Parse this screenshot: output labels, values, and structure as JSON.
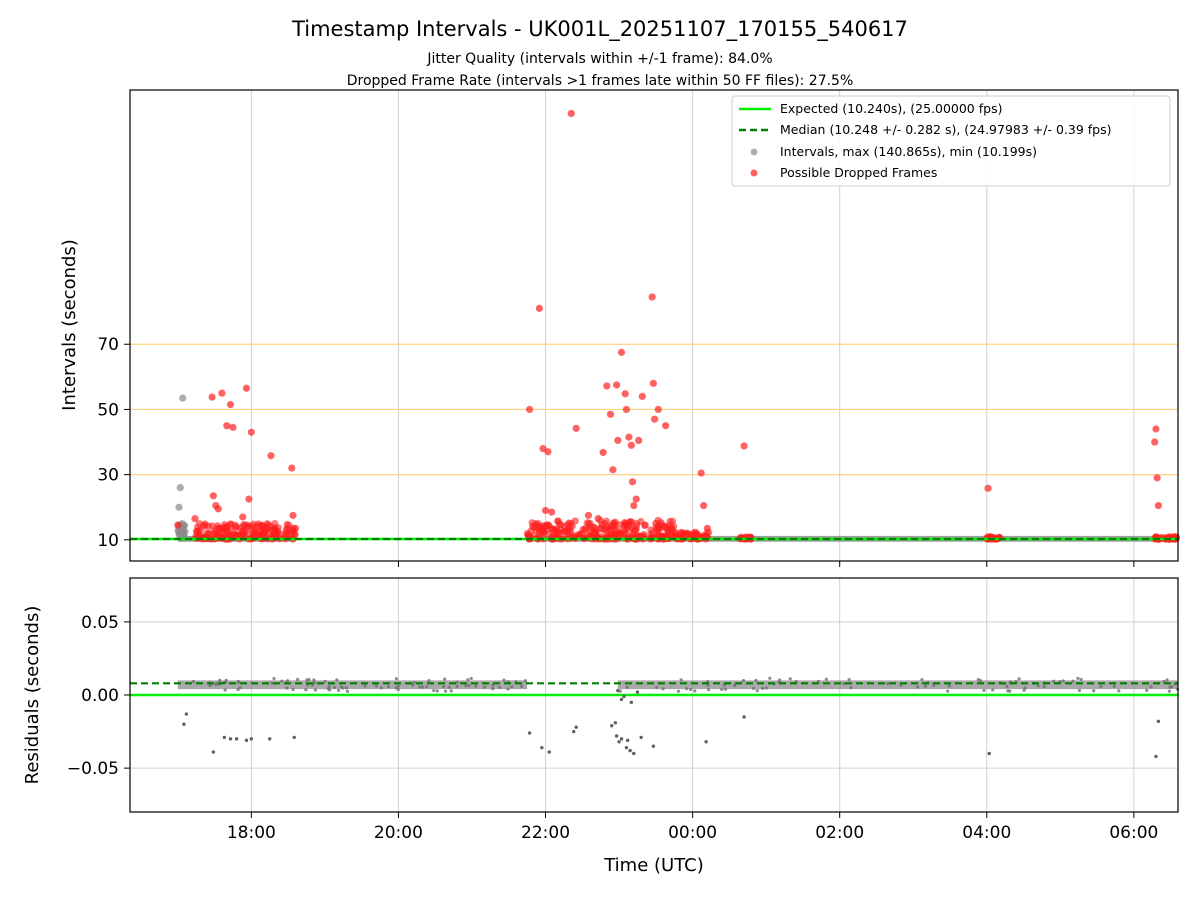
{
  "chart_data": {
    "type": "scatter",
    "title": "Timestamp Intervals - UK001L_20251107_170155_540617",
    "subtitles": [
      "Jitter Quality (intervals within +/-1 frame): 84.0%",
      "Dropped Frame Rate (intervals >1 frames late within 50 FF files): 27.5%"
    ],
    "x_axis": {
      "label": "Time (UTC)",
      "range": [
        "16:21",
        "06:36"
      ],
      "ticks": [
        "18:00",
        "20:00",
        "22:00",
        "00:00",
        "02:00",
        "04:00",
        "06:00"
      ]
    },
    "top_panel": {
      "ylabel": "Intervals (seconds)",
      "ylim": [
        3.5,
        148
      ],
      "yticks": [
        10,
        30,
        50,
        70
      ],
      "reference_lines": [
        30,
        50,
        70
      ],
      "reference_line_color": "#ffd27f",
      "grid": true,
      "legend_placement": "upper right",
      "legend": [
        {
          "label": "Expected (10.240s), (25.00000 fps)",
          "style": "solid-line",
          "color": "#00ee00"
        },
        {
          "label": "Median (10.248 +/- 0.282 s), (24.97983 +/- 0.39 fps)",
          "style": "dashed-line",
          "color": "#007f00"
        },
        {
          "label": "Intervals, max (140.865s), min (10.199s)",
          "style": "marker",
          "color": "#8c8c8c"
        },
        {
          "label": "Possible Dropped Frames",
          "style": "marker",
          "color": "#ff2020"
        }
      ],
      "expected_interval": 10.24,
      "median_interval": 10.248,
      "normal_interval_segments": [
        [
          "17:00",
          "18:36"
        ],
        [
          "21:45",
          "00:38"
        ],
        [
          "00:38",
          "06:36"
        ]
      ],
      "dropped_frames": [
        [
          "17:00",
          14.5
        ],
        [
          "17:14",
          16.5
        ],
        [
          "17:28",
          53.8
        ],
        [
          "17:29",
          23.5
        ],
        [
          "17:31",
          20.5
        ],
        [
          "17:33",
          19.5
        ],
        [
          "17:36",
          55.0
        ],
        [
          "17:40",
          45.0
        ],
        [
          "17:43",
          51.5
        ],
        [
          "17:45",
          44.5
        ],
        [
          "17:53",
          17.0
        ],
        [
          "17:58",
          22.5
        ],
        [
          "17:56",
          56.5
        ],
        [
          "18:00",
          43.0
        ],
        [
          "18:16",
          35.8
        ],
        [
          "18:33",
          32.0
        ],
        [
          "18:34",
          17.5
        ],
        [
          "18:36",
          13.5
        ],
        [
          "21:47",
          50.0
        ],
        [
          "21:55",
          81.0
        ],
        [
          "21:58",
          38.0
        ],
        [
          "22:00",
          19.0
        ],
        [
          "22:02",
          37.0
        ],
        [
          "22:05",
          18.5
        ],
        [
          "22:21",
          140.8
        ],
        [
          "22:25",
          44.2
        ],
        [
          "22:35",
          17.5
        ],
        [
          "22:43",
          16.5
        ],
        [
          "22:47",
          36.8
        ],
        [
          "22:50",
          57.2
        ],
        [
          "22:53",
          48.5
        ],
        [
          "22:55",
          31.5
        ],
        [
          "22:58",
          57.5
        ],
        [
          "22:59",
          40.5
        ],
        [
          "23:02",
          67.5
        ],
        [
          "23:05",
          54.8
        ],
        [
          "23:06",
          50.0
        ],
        [
          "23:08",
          41.5
        ],
        [
          "23:10",
          39.0
        ],
        [
          "23:11",
          27.8
        ],
        [
          "23:12",
          20.5
        ],
        [
          "23:14",
          22.5
        ],
        [
          "23:16",
          40.5
        ],
        [
          "23:19",
          54.0
        ],
        [
          "23:27",
          84.5
        ],
        [
          "23:28",
          58.0
        ],
        [
          "23:29",
          47.0
        ],
        [
          "23:30",
          15.0
        ],
        [
          "23:32",
          50.0
        ],
        [
          "23:38",
          45.0
        ],
        [
          "23:43",
          13.5
        ],
        [
          "00:07",
          30.5
        ],
        [
          "00:09",
          20.5
        ],
        [
          "00:12",
          13.5
        ],
        [
          "00:42",
          38.8
        ],
        [
          "04:01",
          25.8
        ],
        [
          "06:17",
          40.0
        ],
        [
          "06:18",
          44.0
        ],
        [
          "06:19",
          29.0
        ],
        [
          "06:20",
          20.5
        ]
      ],
      "gray_outliers": [
        [
          "17:04",
          53.5
        ],
        [
          "17:02",
          26.0
        ],
        [
          "17:01",
          20.0
        ]
      ],
      "dense_dropped_regions": [
        {
          "from": "17:14",
          "to": "18:36",
          "ymin": 10.2,
          "ymax": 15.0
        },
        {
          "from": "21:45",
          "to": "23:45",
          "ymin": 10.2,
          "ymax": 16.0
        },
        {
          "from": "23:45",
          "to": "00:14",
          "ymin": 10.2,
          "ymax": 12.5
        },
        {
          "from": "00:38",
          "to": "00:48",
          "ymin": 10.2,
          "ymax": 11.0
        },
        {
          "from": "04:00",
          "to": "04:11",
          "ymin": 10.2,
          "ymax": 11.0
        },
        {
          "from": "06:17",
          "to": "06:36",
          "ymin": 10.2,
          "ymax": 11.0
        }
      ]
    },
    "bottom_panel": {
      "ylabel": "Residuals (seconds)",
      "ylim": [
        -0.08,
        0.08
      ],
      "yticks": [
        0.05,
        0.0,
        -0.05
      ],
      "ytick_labels": [
        "0.05",
        "0.00",
        "−0.05"
      ],
      "grid": true,
      "expected_residual": 0.0,
      "median_residual": 0.008,
      "band_center": 0.007,
      "band_half_width": 0.003,
      "band_segments": [
        [
          "17:00",
          "21:45"
        ],
        [
          "22:59",
          "06:36"
        ]
      ],
      "outlier_points": [
        [
          "17:05",
          -0.02
        ],
        [
          "17:07",
          -0.013
        ],
        [
          "17:29",
          -0.039
        ],
        [
          "17:38",
          -0.029
        ],
        [
          "17:43",
          -0.03
        ],
        [
          "17:48",
          -0.03
        ],
        [
          "17:56",
          -0.031
        ],
        [
          "18:00",
          -0.03
        ],
        [
          "18:15",
          -0.03
        ],
        [
          "18:35",
          -0.029
        ],
        [
          "21:47",
          -0.026
        ],
        [
          "21:57",
          -0.036
        ],
        [
          "22:03",
          -0.039
        ],
        [
          "22:23",
          -0.025
        ],
        [
          "22:25",
          -0.022
        ],
        [
          "22:54",
          -0.021
        ],
        [
          "22:57",
          -0.019
        ],
        [
          "22:58",
          -0.028
        ],
        [
          "23:00",
          -0.032
        ],
        [
          "23:02",
          -0.03
        ],
        [
          "23:06",
          -0.036
        ],
        [
          "23:07",
          -0.031
        ],
        [
          "23:09",
          -0.038
        ],
        [
          "23:12",
          -0.04
        ],
        [
          "23:18",
          -0.029
        ],
        [
          "23:28",
          -0.035
        ],
        [
          "00:11",
          -0.032
        ],
        [
          "00:42",
          -0.015
        ],
        [
          "04:02",
          -0.04
        ],
        [
          "06:18",
          -0.042
        ],
        [
          "06:20",
          -0.018
        ],
        [
          "23:02",
          -0.003
        ],
        [
          "23:04",
          -0.001
        ],
        [
          "22:59",
          0.003
        ],
        [
          "23:10",
          -0.005
        ],
        [
          "23:15",
          0.002
        ]
      ]
    },
    "colors": {
      "expected": "#00ee00",
      "median": "#007f00",
      "intervals": "#8c8c8c",
      "dropped": "#ff2020",
      "reference": "#ffd27f",
      "grid": "#d0d0d0"
    }
  }
}
